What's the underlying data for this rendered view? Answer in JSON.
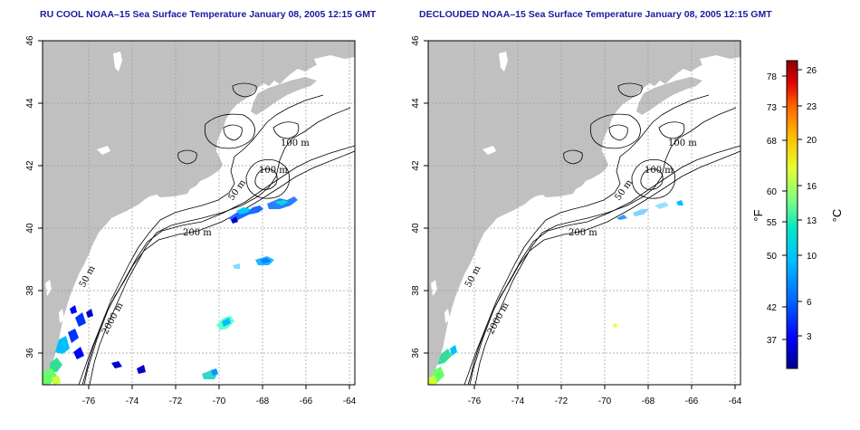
{
  "maps": [
    {
      "title": "RU COOL NOAA–15 Sea Surface Temperature January 08, 2005 12:15 GMT",
      "x_ticks": [
        "-76",
        "-74",
        "-72",
        "-70",
        "-68",
        "-66",
        "-64"
      ],
      "y_ticks": [
        "46",
        "44",
        "42",
        "40",
        "38",
        "36"
      ],
      "contour_labels": [
        "100 m",
        "100 m",
        "50 m",
        "200 m",
        "50 m",
        "2000 m"
      ]
    },
    {
      "title": "DECLOUDED NOAA–15 Sea Surface Temperature January 08, 2005 12:15 GMT",
      "x_ticks": [
        "-76",
        "-74",
        "-72",
        "-70",
        "-68",
        "-66",
        "-64"
      ],
      "y_ticks": [
        "46",
        "44",
        "42",
        "40",
        "38",
        "36"
      ],
      "contour_labels": [
        "100 m",
        "100 m",
        "50 m",
        "200 m",
        "50 m",
        "2000 m"
      ]
    }
  ],
  "colorbar": {
    "fahrenheit_unit": "°F",
    "celsius_unit": "°C",
    "fahrenheit_labels": [
      "78",
      "73",
      "68",
      "60",
      "55",
      "50",
      "42",
      "37"
    ],
    "celsius_labels": [
      "26",
      "23",
      "20",
      "16",
      "13",
      "10",
      "6",
      "3"
    ],
    "colors": [
      "#00008b",
      "#0000ff",
      "#0066ff",
      "#00bfff",
      "#00e5cc",
      "#7fff7f",
      "#e5ff33",
      "#ffc000",
      "#ff6600",
      "#e00000",
      "#8b0000"
    ]
  }
}
